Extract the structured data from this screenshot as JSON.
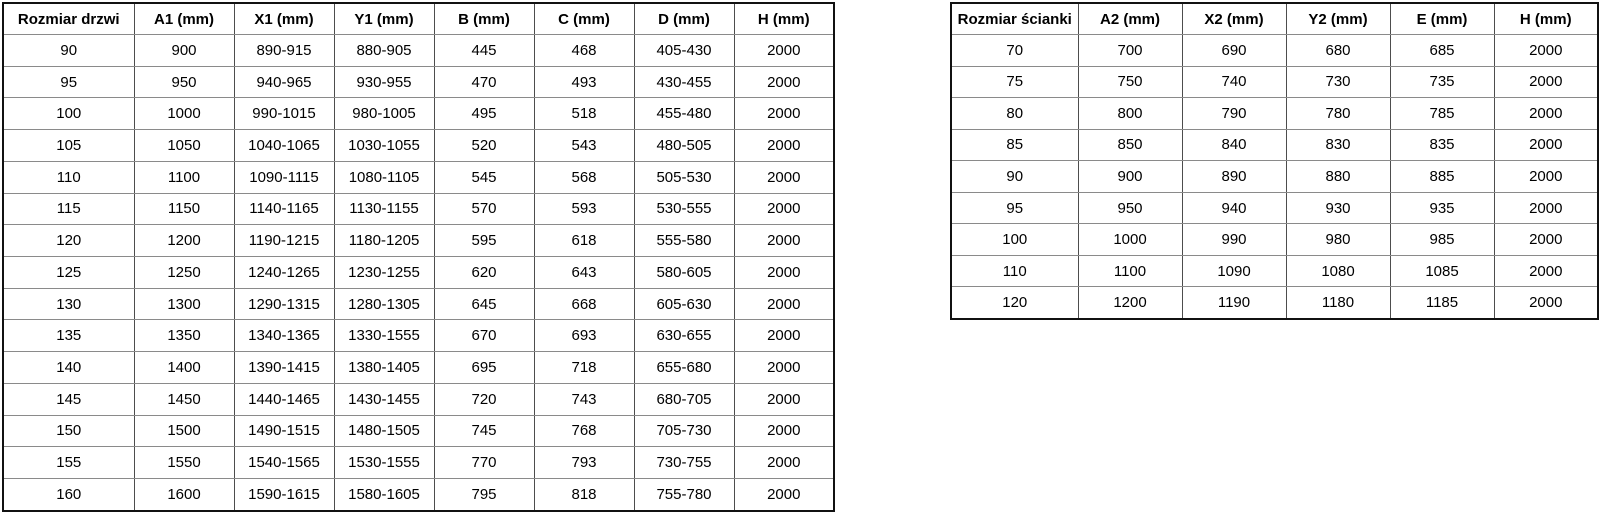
{
  "colors": {
    "background": "#ffffff",
    "text": "#000000",
    "border_outer": "#111111",
    "border_inner_vertical": "#4d4d4d",
    "border_inner_horizontal": "#8a8a8a"
  },
  "tables": {
    "doors": {
      "name": "door-sizes-table",
      "headers": [
        "Rozmiar drzwi",
        "A1 (mm)",
        "X1 (mm)",
        "Y1 (mm)",
        "B (mm)",
        "C (mm)",
        "D (mm)",
        "H (mm)"
      ],
      "rows": [
        [
          "90",
          "900",
          "890-915",
          "880-905",
          "445",
          "468",
          "405-430",
          "2000"
        ],
        [
          "95",
          "950",
          "940-965",
          "930-955",
          "470",
          "493",
          "430-455",
          "2000"
        ],
        [
          "100",
          "1000",
          "990-1015",
          "980-1005",
          "495",
          "518",
          "455-480",
          "2000"
        ],
        [
          "105",
          "1050",
          "1040-1065",
          "1030-1055",
          "520",
          "543",
          "480-505",
          "2000"
        ],
        [
          "110",
          "1100",
          "1090-1115",
          "1080-1105",
          "545",
          "568",
          "505-530",
          "2000"
        ],
        [
          "115",
          "1150",
          "1140-1165",
          "1130-1155",
          "570",
          "593",
          "530-555",
          "2000"
        ],
        [
          "120",
          "1200",
          "1190-1215",
          "1180-1205",
          "595",
          "618",
          "555-580",
          "2000"
        ],
        [
          "125",
          "1250",
          "1240-1265",
          "1230-1255",
          "620",
          "643",
          "580-605",
          "2000"
        ],
        [
          "130",
          "1300",
          "1290-1315",
          "1280-1305",
          "645",
          "668",
          "605-630",
          "2000"
        ],
        [
          "135",
          "1350",
          "1340-1365",
          "1330-1555",
          "670",
          "693",
          "630-655",
          "2000"
        ],
        [
          "140",
          "1400",
          "1390-1415",
          "1380-1405",
          "695",
          "718",
          "655-680",
          "2000"
        ],
        [
          "145",
          "1450",
          "1440-1465",
          "1430-1455",
          "720",
          "743",
          "680-705",
          "2000"
        ],
        [
          "150",
          "1500",
          "1490-1515",
          "1480-1505",
          "745",
          "768",
          "705-730",
          "2000"
        ],
        [
          "155",
          "1550",
          "1540-1565",
          "1530-1555",
          "770",
          "793",
          "730-755",
          "2000"
        ],
        [
          "160",
          "1600",
          "1590-1615",
          "1580-1605",
          "795",
          "818",
          "755-780",
          "2000"
        ]
      ]
    },
    "walls": {
      "name": "wall-sizes-table",
      "headers": [
        "Rozmiar ścianki",
        "A2 (mm)",
        "X2 (mm)",
        "Y2 (mm)",
        "E (mm)",
        "H (mm)"
      ],
      "rows": [
        [
          "70",
          "700",
          "690",
          "680",
          "685",
          "2000"
        ],
        [
          "75",
          "750",
          "740",
          "730",
          "735",
          "2000"
        ],
        [
          "80",
          "800",
          "790",
          "780",
          "785",
          "2000"
        ],
        [
          "85",
          "850",
          "840",
          "830",
          "835",
          "2000"
        ],
        [
          "90",
          "900",
          "890",
          "880",
          "885",
          "2000"
        ],
        [
          "95",
          "950",
          "940",
          "930",
          "935",
          "2000"
        ],
        [
          "100",
          "1000",
          "990",
          "980",
          "985",
          "2000"
        ],
        [
          "110",
          "1100",
          "1090",
          "1080",
          "1085",
          "2000"
        ],
        [
          "120",
          "1200",
          "1190",
          "1180",
          "1185",
          "2000"
        ]
      ]
    }
  }
}
